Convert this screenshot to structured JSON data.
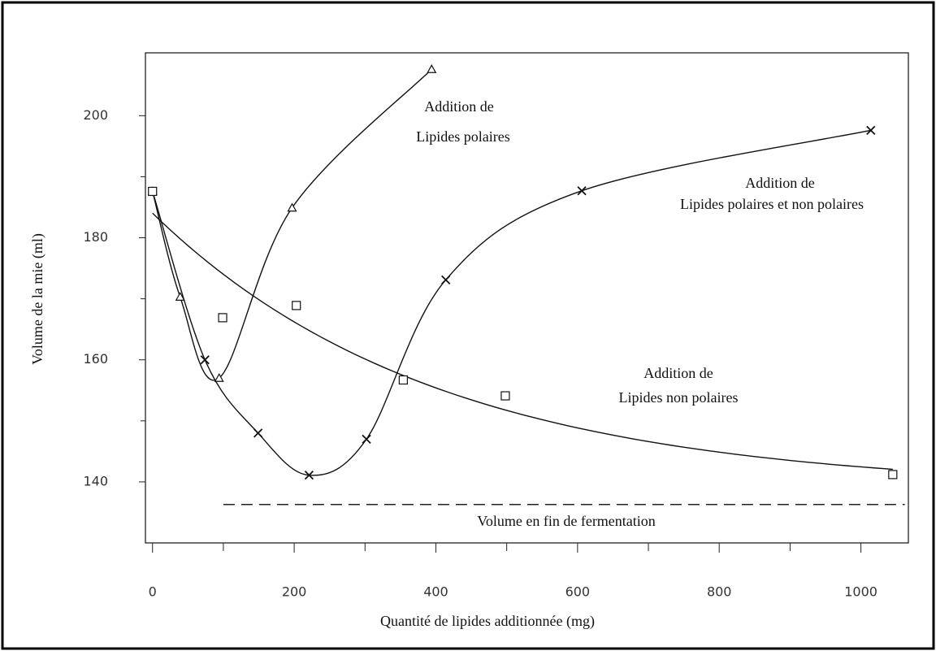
{
  "chart_data": {
    "type": "scatter",
    "xlabel": "Quantité de lipides additionnée (mg)",
    "ylabel": "Volume de la mie (ml)",
    "xlim": [
      -10,
      1067
    ],
    "ylim": [
      130,
      210.3
    ],
    "xticks": [
      0,
      200,
      400,
      600,
      800,
      1000
    ],
    "xticks_minor": [
      100,
      300,
      500,
      700,
      900
    ],
    "yticks": [
      140,
      160,
      180,
      200
    ],
    "yticks_minor": [
      150,
      170,
      190
    ],
    "series": [
      {
        "name": [
          "Addition de",
          "Lipides polaires"
        ],
        "marker": "triangle",
        "curve": "smooth",
        "color": "#111111",
        "x": [
          0,
          39,
          94,
          197,
          394
        ],
        "values": [
          187.6,
          170.3,
          157,
          184.9,
          207.6
        ]
      },
      {
        "name": [
          "Addition de",
          "Lipides polaires et non polaires"
        ],
        "marker": "cross",
        "curve": "smooth",
        "color": "#111111",
        "x": [
          0,
          74,
          149,
          221,
          302,
          414,
          606,
          1014
        ],
        "values": [
          187.6,
          160,
          148,
          141.1,
          147,
          173.1,
          187.7,
          197.6
        ]
      },
      {
        "name": [
          "Addition de",
          "Lipides non polaires"
        ],
        "marker": "square",
        "curve": "fit",
        "color": "#111111",
        "x": [
          0,
          99,
          203,
          354,
          498,
          1045
        ],
        "values": [
          187.6,
          166.9,
          168.9,
          156.7,
          154.1,
          141.2
        ]
      }
    ],
    "reference": {
      "value": 136.3,
      "x": [
        100,
        1062
      ],
      "label": "Volume en fin de fermentation",
      "style": "dashed"
    }
  }
}
